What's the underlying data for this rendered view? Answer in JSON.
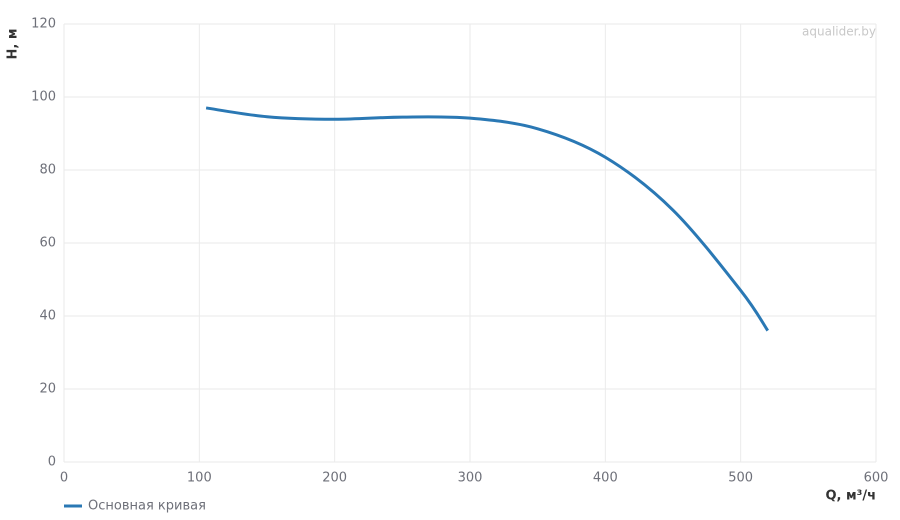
{
  "chart_data": {
    "type": "line",
    "watermark": "aqualider.by",
    "x_label": "Q, м³/ч",
    "y_label": "H, м",
    "x": [
      105,
      150,
      200,
      250,
      300,
      350,
      400,
      450,
      500,
      520
    ],
    "series": [
      {
        "name": "Основная кривая",
        "color": "#2a78b4",
        "values": [
          97,
          94.6,
          93.9,
          94.5,
          94.2,
          91.3,
          83.5,
          69,
          47,
          36
        ]
      }
    ],
    "xlim": [
      0,
      600
    ],
    "xticks": [
      0,
      100,
      200,
      300,
      400,
      500,
      600
    ],
    "ylim": [
      0,
      120
    ],
    "yticks": [
      0,
      20,
      40,
      60,
      80,
      100,
      120
    ],
    "grid": true
  }
}
